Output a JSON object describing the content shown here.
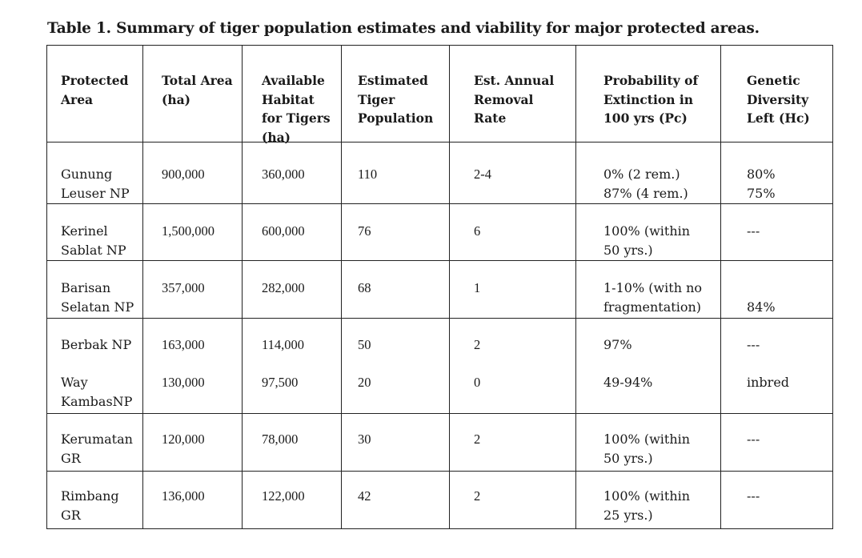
{
  "caption": "Table 1. Summary of tiger population estimates and viability for major protected areas.",
  "headers": [
    [
      "Protected",
      "Area"
    ],
    [
      "Total Area",
      "(ha)"
    ],
    [
      "Available",
      "Habitat",
      "for Tigers",
      "(ha)"
    ],
    [
      "Estimated",
      "Tiger",
      "Population"
    ],
    [
      "Est. Annual",
      "Removal",
      "Rate"
    ],
    [
      "Probability of",
      "Extinction in",
      "100 yrs (Pc)"
    ],
    [
      "Genetic",
      "Diversity",
      "Left (Hc)"
    ]
  ],
  "rows": [
    {
      "area": [
        "Gunung",
        "Leuser NP"
      ],
      "total": "900,000",
      "habitat": "360,000",
      "population": "110",
      "removal": "2-4",
      "extinction": [
        "0% (2 rem.)",
        "87% (4 rem.)"
      ],
      "diversity": [
        "80%",
        "75%"
      ]
    },
    {
      "area": [
        "Kerinel",
        "Sablat NP"
      ],
      "total": "1,500,000",
      "habitat": "600,000",
      "population": "76",
      "removal": "6",
      "extinction": [
        "100% (within",
        "50 yrs.)"
      ],
      "diversity": [
        "---"
      ]
    },
    {
      "area": [
        "Barisan",
        "Selatan NP"
      ],
      "total": "357,000",
      "habitat": "282,000",
      "population": "68",
      "removal": "1",
      "extinction": [
        "1-10% (with no",
        "fragmentation)"
      ],
      "diversity": [
        "84%"
      ]
    },
    {
      "area": [
        "Berbak NP"
      ],
      "total": "163,000",
      "habitat": "114,000",
      "population": "50",
      "removal": "2",
      "extinction": [
        "97%"
      ],
      "diversity": [
        "---"
      ]
    },
    {
      "area": [
        "Way",
        "KambasNP"
      ],
      "total": "130,000",
      "habitat": "97,500",
      "population": "20",
      "removal": "0",
      "extinction": [
        "49-94%"
      ],
      "diversity": [
        "inbred"
      ]
    },
    {
      "area": [
        "Kerumatan",
        "GR"
      ],
      "total": "120,000",
      "habitat": "78,000",
      "population": "30",
      "removal": "2",
      "extinction": [
        "100% (within",
        "50 yrs.)"
      ],
      "diversity": [
        "---"
      ]
    },
    {
      "area": [
        "Rimbang",
        "GR"
      ],
      "total": "136,000",
      "habitat": "122,000",
      "population": "42",
      "removal": "2",
      "extinction": [
        "100% (within",
        "25 yrs.)"
      ],
      "diversity": [
        "---"
      ]
    }
  ]
}
